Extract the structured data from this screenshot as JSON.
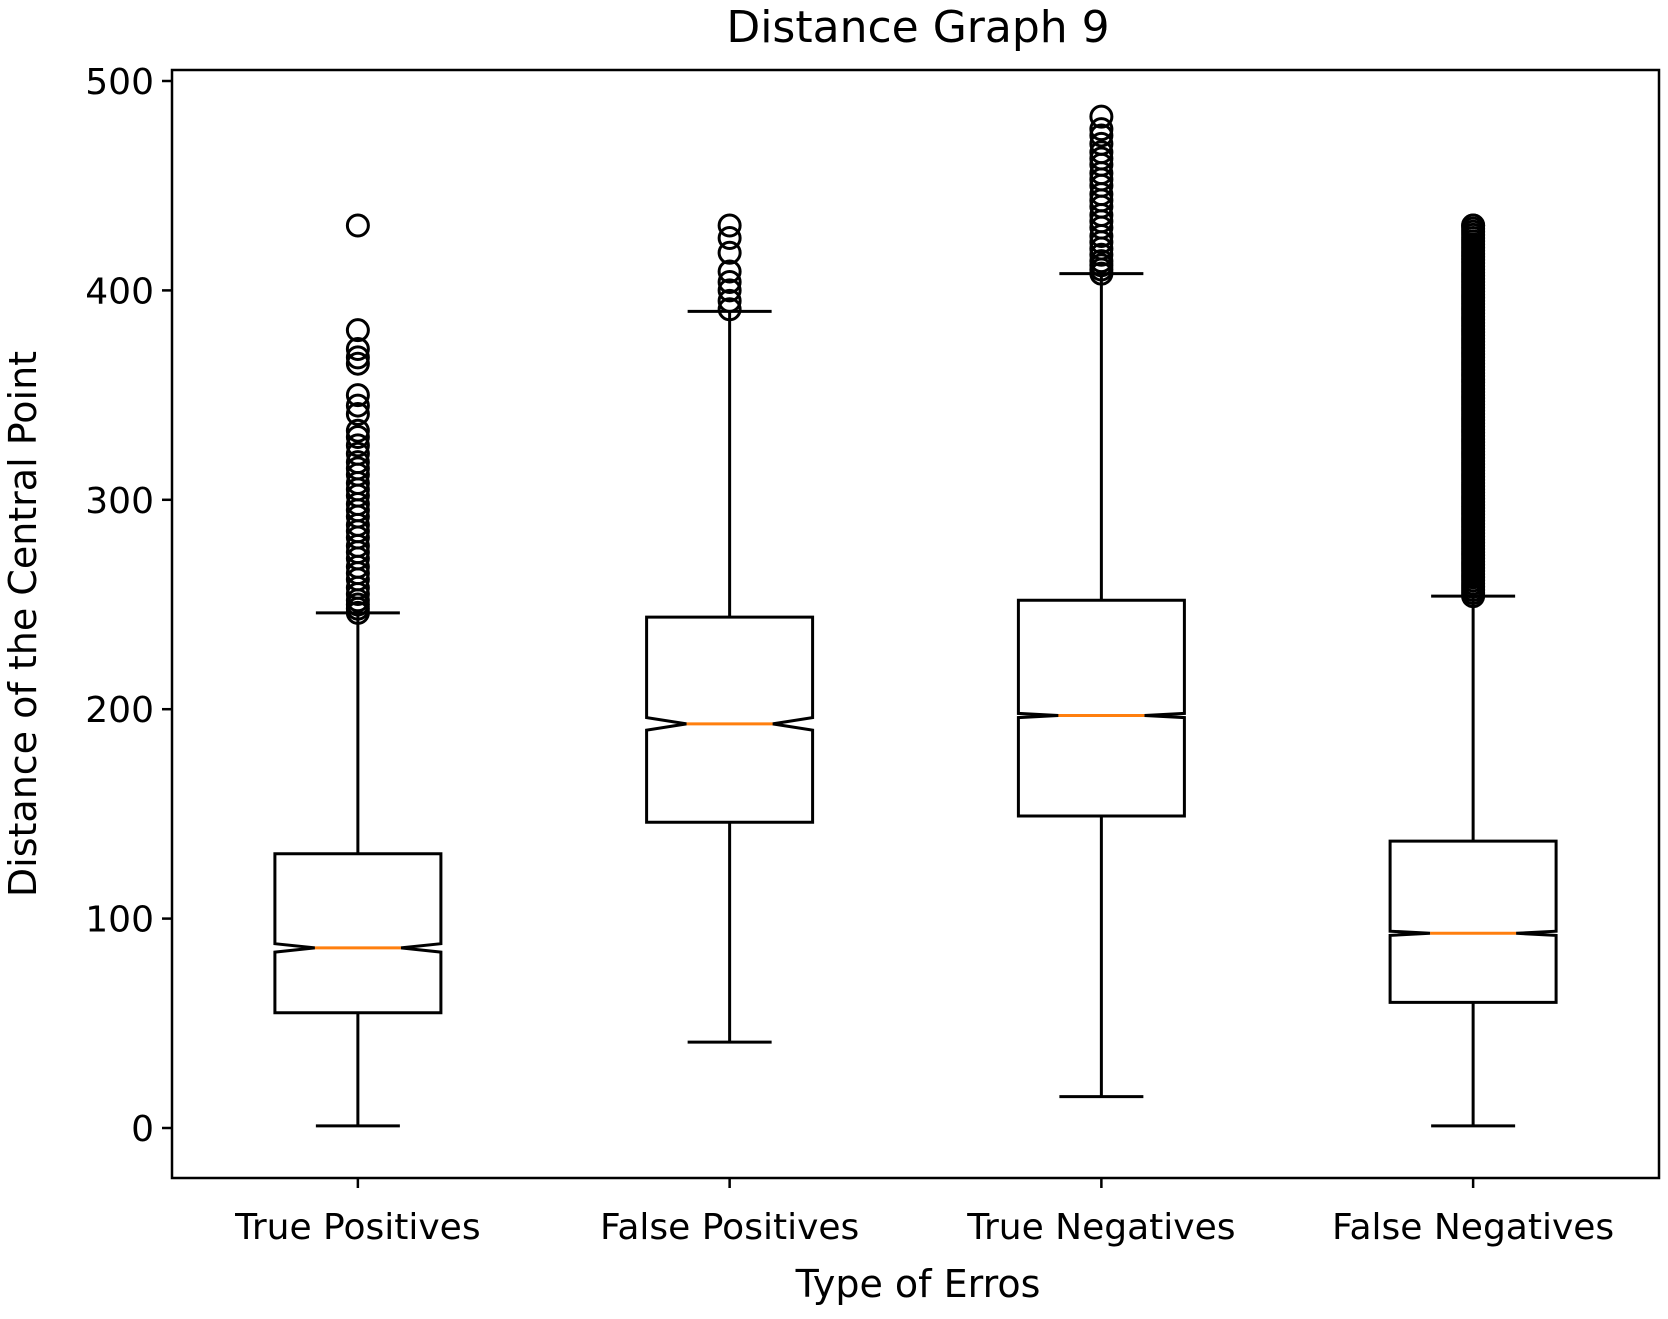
{
  "chart_data": {
    "type": "boxplot",
    "title": "Distance Graph 9",
    "xlabel": "Type of Erros",
    "ylabel": "Distance of the Central Point",
    "ylim": [
      -24,
      500
    ],
    "yticks": [
      0,
      100,
      200,
      300,
      400,
      500
    ],
    "grid": false,
    "notched": true,
    "colors": {
      "box": "#000000",
      "median": "#ff7f0e",
      "background": "#ffffff"
    },
    "categories": [
      "True Positives",
      "False Positives",
      "True Negatives",
      "False Negatives"
    ],
    "boxes": [
      {
        "label": "True Positives",
        "whisker_low": 1,
        "q1": 55,
        "median": 86,
        "q3": 131,
        "whisker_high": 246,
        "notch_low": 84,
        "notch_high": 88,
        "outliers": [
          246,
          248,
          250,
          252,
          255,
          258,
          262,
          265,
          268,
          272,
          275,
          278,
          282,
          285,
          288,
          292,
          295,
          298,
          302,
          305,
          308,
          312,
          315,
          318,
          322,
          326,
          330,
          333,
          341,
          345,
          350,
          365,
          368,
          372,
          381,
          431
        ]
      },
      {
        "label": "False Positives",
        "whisker_low": 41,
        "q1": 146,
        "median": 193,
        "q3": 244,
        "whisker_high": 390,
        "notch_low": 190,
        "notch_high": 196,
        "outliers": [
          391,
          395,
          400,
          404,
          409,
          418,
          425,
          431
        ]
      },
      {
        "label": "True Negatives",
        "whisker_low": 15,
        "q1": 149,
        "median": 197,
        "q3": 252,
        "whisker_high": 408,
        "notch_low": 196,
        "notch_high": 198,
        "outliers": [
          408,
          410,
          412,
          414,
          417,
          420,
          423,
          426,
          430,
          433,
          436,
          440,
          443,
          446,
          450,
          453,
          456,
          460,
          463,
          466,
          470,
          474,
          477,
          483
        ]
      },
      {
        "label": "False Negatives",
        "whisker_low": 1,
        "q1": 60,
        "median": 93,
        "q3": 137,
        "whisker_high": 254,
        "notch_low": 92,
        "notch_high": 94,
        "outliers_dense_range": [
          254,
          431
        ]
      }
    ]
  }
}
